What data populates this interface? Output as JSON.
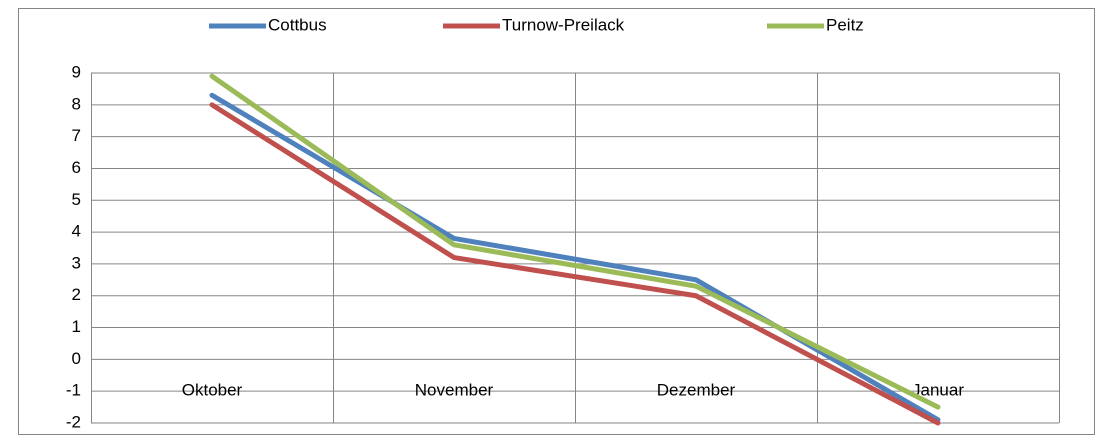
{
  "chart_data": {
    "type": "line",
    "categories": [
      "Oktober",
      "November",
      "Dezember",
      "Januar"
    ],
    "series": [
      {
        "name": "Cottbus",
        "color": "#4f81bd",
        "values": [
          8.3,
          3.8,
          2.5,
          -1.9
        ]
      },
      {
        "name": "Turnow-Preilack",
        "color": "#c0504d",
        "values": [
          8.0,
          3.2,
          2.0,
          -2.0
        ]
      },
      {
        "name": "Peitz",
        "color": "#9bbb59",
        "values": [
          8.9,
          3.6,
          2.3,
          -1.5
        ]
      }
    ],
    "ylim": [
      -2,
      9
    ],
    "yticks": [
      -2,
      -1,
      0,
      1,
      2,
      3,
      4,
      5,
      6,
      7,
      8,
      9
    ],
    "grid": true,
    "legend": "top"
  }
}
